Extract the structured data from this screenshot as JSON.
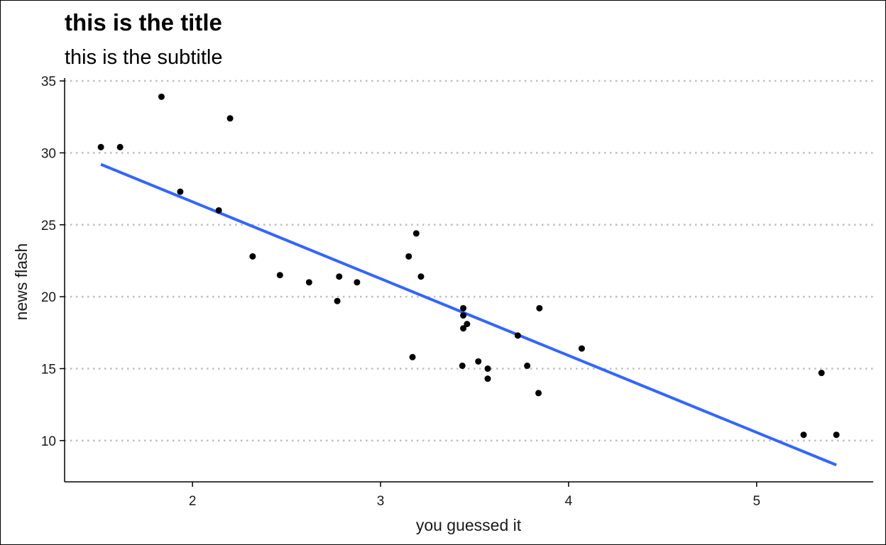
{
  "chart_data": {
    "type": "scatter",
    "title": "this is the title",
    "subtitle": "this is the subtitle",
    "xlabel": "you guessed it",
    "ylabel": "news flash",
    "xlim": [
      1.32,
      5.62
    ],
    "ylim": [
      7.13,
      35.2
    ],
    "xticks": [
      2,
      3,
      4,
      5
    ],
    "yticks": [
      10,
      15,
      20,
      25,
      30,
      35
    ],
    "grid": "horizontal dotted",
    "colors": {
      "points": "#000000",
      "trend_line": "#3366FF",
      "grid": "#bfbfbf"
    },
    "points": [
      {
        "x": 1.513,
        "y": 30.4
      },
      {
        "x": 1.615,
        "y": 30.4
      },
      {
        "x": 1.835,
        "y": 33.9
      },
      {
        "x": 1.935,
        "y": 27.3
      },
      {
        "x": 2.14,
        "y": 26.0
      },
      {
        "x": 2.2,
        "y": 32.4
      },
      {
        "x": 2.32,
        "y": 22.8
      },
      {
        "x": 2.465,
        "y": 21.5
      },
      {
        "x": 2.62,
        "y": 21.0
      },
      {
        "x": 2.77,
        "y": 19.7
      },
      {
        "x": 2.78,
        "y": 21.4
      },
      {
        "x": 2.875,
        "y": 21.0
      },
      {
        "x": 3.15,
        "y": 22.8
      },
      {
        "x": 3.17,
        "y": 15.8
      },
      {
        "x": 3.19,
        "y": 24.4
      },
      {
        "x": 3.215,
        "y": 21.4
      },
      {
        "x": 3.435,
        "y": 15.2
      },
      {
        "x": 3.44,
        "y": 19.2
      },
      {
        "x": 3.44,
        "y": 18.7
      },
      {
        "x": 3.44,
        "y": 17.8
      },
      {
        "x": 3.46,
        "y": 18.1
      },
      {
        "x": 3.52,
        "y": 15.5
      },
      {
        "x": 3.57,
        "y": 15.0
      },
      {
        "x": 3.57,
        "y": 14.3
      },
      {
        "x": 3.73,
        "y": 17.3
      },
      {
        "x": 3.78,
        "y": 15.2
      },
      {
        "x": 3.84,
        "y": 13.3
      },
      {
        "x": 3.845,
        "y": 19.2
      },
      {
        "x": 4.07,
        "y": 16.4
      },
      {
        "x": 5.25,
        "y": 10.4
      },
      {
        "x": 5.345,
        "y": 14.7
      },
      {
        "x": 5.424,
        "y": 10.4
      }
    ],
    "trend_line": {
      "x": [
        1.513,
        5.424
      ],
      "y": [
        29.2,
        8.3
      ]
    }
  }
}
